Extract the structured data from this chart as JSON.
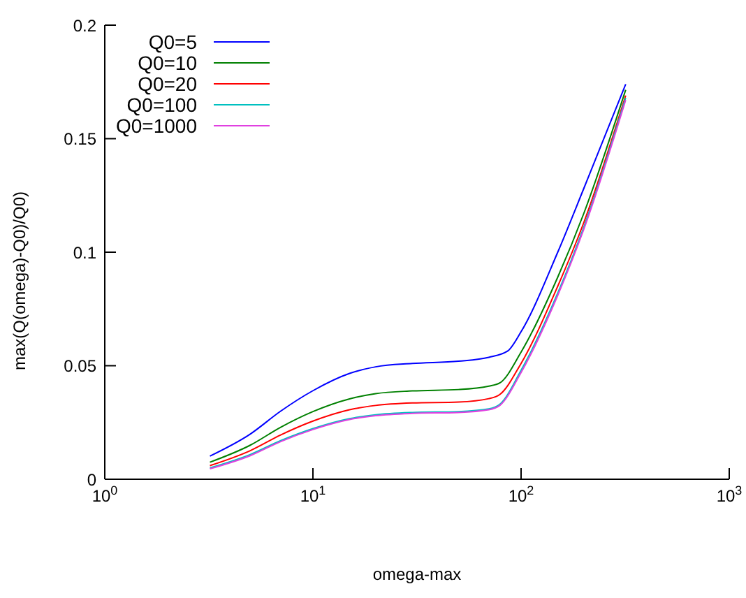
{
  "chart_data": {
    "type": "line",
    "xlabel": "omega-max",
    "ylabel": "max(Q(omega)-Q0)/Q0)",
    "log": "x",
    "xlim": [
      1,
      1000
    ],
    "xticks": [
      {
        "value": 1,
        "label": "10$^{0}$"
      },
      {
        "value": 10,
        "label": "10$^{1}$"
      },
      {
        "value": 100,
        "label": "10$^{2}$"
      },
      {
        "value": 1000,
        "label": "10$^{3}$"
      }
    ],
    "ylim": [
      0,
      0.2
    ],
    "yticks": [
      0,
      0.05,
      0.1,
      0.15,
      0.2
    ],
    "grid": false,
    "legend": "top left",
    "marker": "none",
    "line_style": "solid",
    "series": [
      {
        "name": "Q0=5",
        "color": "#0000ff",
        "x": [
          3.2,
          5,
          7,
          10,
          15,
          20,
          30,
          50,
          70,
          86,
          100,
          150,
          200,
          318
        ],
        "values": [
          0.0102,
          0.0199,
          0.03,
          0.039,
          0.0466,
          0.0495,
          0.051,
          0.052,
          0.0537,
          0.0564,
          0.065,
          0.1,
          0.128,
          0.174
        ]
      },
      {
        "name": "Q0=10",
        "color": "#008000",
        "x": [
          3.2,
          5,
          7,
          10,
          15,
          20,
          30,
          50,
          70,
          79,
          100,
          150,
          200,
          318
        ],
        "values": [
          0.0075,
          0.015,
          0.0229,
          0.0298,
          0.0354,
          0.0377,
          0.0389,
          0.0395,
          0.041,
          0.0424,
          0.056,
          0.089,
          0.117,
          0.1715
        ]
      },
      {
        "name": "Q0=20",
        "color": "#ff0000",
        "x": [
          3.2,
          5,
          7,
          10,
          15,
          20,
          30,
          50,
          70,
          79,
          100,
          150,
          200,
          318
        ],
        "values": [
          0.006,
          0.0126,
          0.0195,
          0.0256,
          0.0306,
          0.0325,
          0.0336,
          0.034,
          0.0355,
          0.0373,
          0.051,
          0.085,
          0.113,
          0.169
        ]
      },
      {
        "name": "Q0=100",
        "color": "#00c0c0",
        "x": [
          3.2,
          5,
          7,
          10,
          15,
          20,
          30,
          50,
          70,
          79,
          100,
          150,
          200,
          318
        ],
        "values": [
          0.005,
          0.0109,
          0.017,
          0.0223,
          0.0267,
          0.0284,
          0.0294,
          0.0298,
          0.031,
          0.033,
          0.048,
          0.082,
          0.111,
          0.168
        ]
      },
      {
        "name": "Q0=1000",
        "color": "#e040e0",
        "x": [
          3.2,
          5,
          7,
          10,
          15,
          20,
          30,
          50,
          70,
          79,
          100,
          150,
          200,
          318
        ],
        "values": [
          0.0046,
          0.0104,
          0.0166,
          0.0219,
          0.0263,
          0.028,
          0.029,
          0.0294,
          0.0306,
          0.0325,
          0.047,
          0.081,
          0.11,
          0.167
        ]
      }
    ]
  }
}
